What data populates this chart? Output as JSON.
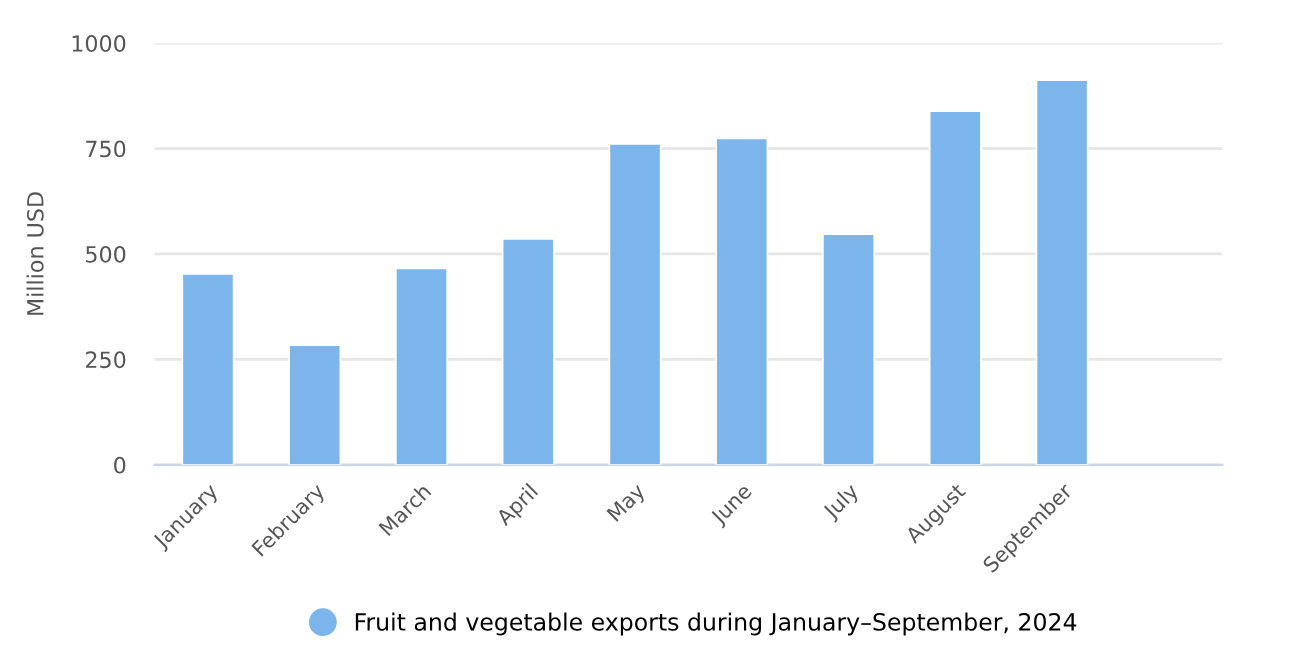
{
  "chart_data": {
    "type": "bar",
    "categories": [
      "January",
      "February",
      "March",
      "April",
      "May",
      "June",
      "July",
      "August",
      "September",
      null
    ],
    "series": [
      {
        "name": "Fruit and vegetable exports during January–September, 2024",
        "color": "#7cb5ec",
        "values": [
          453,
          284,
          466,
          536,
          761,
          774,
          547,
          839,
          912,
          null
        ]
      }
    ],
    "ylabel": "Million USD",
    "ylim": [
      0,
      1000
    ],
    "yticks": [
      0,
      250,
      500,
      750,
      1000
    ],
    "grid": "y",
    "legend": "bottom"
  }
}
